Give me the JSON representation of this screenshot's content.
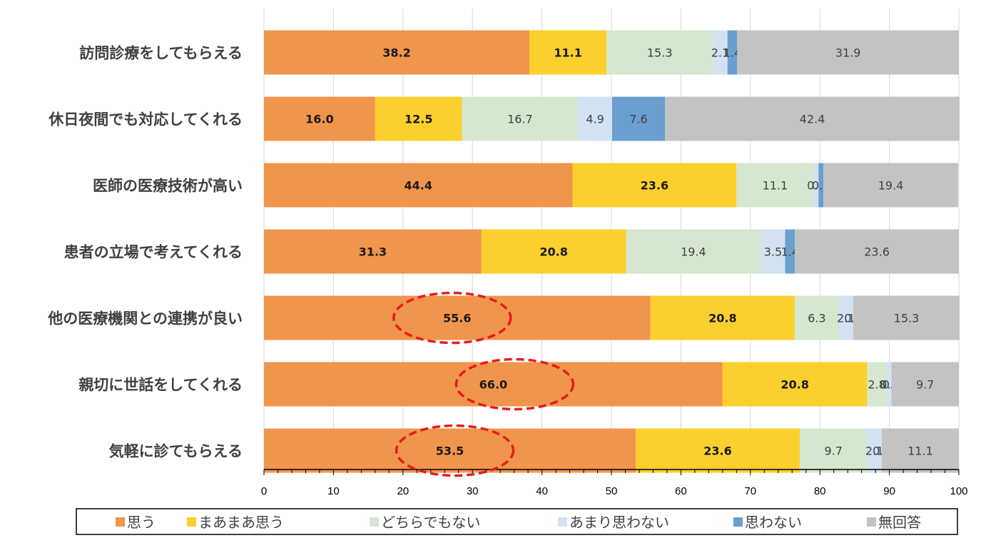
{
  "chart_data": {
    "type": "bar",
    "orientation": "horizontal",
    "stacked": true,
    "categories": [
      "訪問診療をしてもらえる",
      "休日夜間でも対応してくれる",
      "医師の医療技術が高い",
      "患者の立場で考えてくれる",
      "他の医療機関との連携が良い",
      "親切に世話をしてくれる",
      "気軽に診てもらえる"
    ],
    "series": [
      {
        "name": "思う",
        "color": "#F0954C",
        "values": [
          38.2,
          16.0,
          44.4,
          31.3,
          55.6,
          66.0,
          53.5
        ],
        "label_bold": true
      },
      {
        "name": "まあまあ思う",
        "color": "#FBCF2E",
        "values": [
          11.1,
          12.5,
          23.6,
          20.8,
          20.8,
          20.8,
          23.6
        ],
        "label_bold": true
      },
      {
        "name": "どちらでもない",
        "color": "#D5E8CF",
        "values": [
          15.3,
          16.7,
          11.1,
          19.4,
          6.3,
          2.8,
          9.7
        ],
        "label_bold": false
      },
      {
        "name": "あまり思わない",
        "color": "#D3E2F3",
        "values": [
          2.1,
          4.9,
          0.7,
          3.5,
          2.1,
          0.7,
          2.1
        ],
        "label_bold": false
      },
      {
        "name": "思わない",
        "color": "#6A9FD0",
        "values": [
          1.4,
          7.6,
          0.7,
          1.4,
          0.0,
          0.0,
          0.0
        ],
        "label_bold": false
      },
      {
        "name": "無回答",
        "color": "#C3C3C3",
        "values": [
          31.9,
          42.4,
          19.4,
          23.6,
          15.3,
          9.7,
          11.1
        ],
        "label_bold": false
      }
    ],
    "data_labels": [
      [
        "38.2",
        "11.1",
        "15.3",
        "2.1",
        "1.4",
        "31.9"
      ],
      [
        "16.0",
        "12.5",
        "16.7",
        "4.9",
        "7.6",
        "42.4"
      ],
      [
        "44.4",
        "23.6",
        "11.1",
        "0.7",
        "0.7",
        "19.4"
      ],
      [
        "31.3",
        "20.8",
        "19.4",
        "3.5",
        "1.4",
        "23.6"
      ],
      [
        "55.6",
        "20.8",
        "6.3",
        "2.1",
        "0.0",
        "15.3"
      ],
      [
        "66.0",
        "20.8",
        "2.8",
        "0.7",
        "0.0",
        "9.7"
      ],
      [
        "53.5",
        "23.6",
        "9.7",
        "2.1",
        "0.0",
        "11.1"
      ]
    ],
    "xlim": [
      0,
      100
    ],
    "xticks": [
      "0",
      "10",
      "20",
      "30",
      "40",
      "50",
      "60",
      "70",
      "80",
      "90",
      "100"
    ],
    "grid": true,
    "legend_position": "bottom",
    "highlighted_categories": [
      4,
      5,
      6
    ],
    "highlight_color": "#E31E1E"
  }
}
